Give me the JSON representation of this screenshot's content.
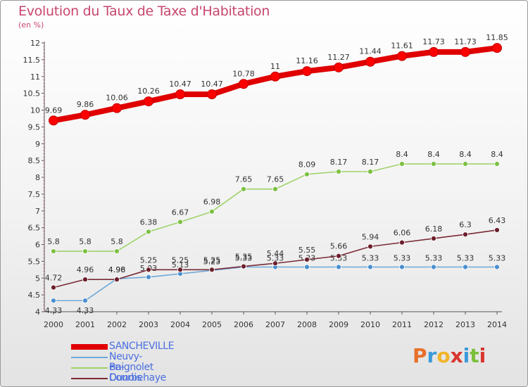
{
  "title": "Evolution du Taux de Taxe d'Habitation",
  "unit": "(en %)",
  "logo": {
    "text": "Proxiti",
    "colors": [
      "#e8702a",
      "#3a9ad9",
      "#f2b42a",
      "#d9352f",
      "#3a9ad9",
      "#7bbf3a",
      "#d9352f"
    ]
  },
  "chart_data": {
    "type": "line",
    "x": [
      2000,
      2001,
      2002,
      2003,
      2004,
      2005,
      2006,
      2007,
      2008,
      2009,
      2010,
      2011,
      2012,
      2013,
      2014
    ],
    "ylim": [
      4,
      12
    ],
    "yticks": [
      4,
      4.5,
      5,
      5.5,
      6,
      6.5,
      7,
      7.5,
      8,
      8.5,
      9,
      9.5,
      10,
      10.5,
      11,
      11.5,
      12
    ],
    "ytick_labels": [
      "4",
      "4.5",
      "5",
      "5.5",
      "6",
      "6.5",
      "7",
      "7.5",
      "8",
      "8.5",
      "9",
      "9.5",
      "10",
      "10.5",
      "11",
      "11.5",
      "12"
    ],
    "grid": false,
    "legend": "bottom-left",
    "series": [
      {
        "name": "SANCHEVILLE",
        "color": "#e00000",
        "marker": "#ff0000",
        "values": [
          9.69,
          9.86,
          10.06,
          10.26,
          10.47,
          10.47,
          10.78,
          11,
          11.16,
          11.27,
          11.44,
          11.61,
          11.73,
          11.73,
          11.85
        ],
        "labels": [
          "9.69",
          "9.86",
          "10.06",
          "10.26",
          "10.47",
          "10.47",
          "10.78",
          "11",
          "11.16",
          "11.27",
          "11.44",
          "11.61",
          "11.73",
          "11.73",
          "11.85"
        ]
      },
      {
        "name": "Neuvy-en-Dunois",
        "color": "#6fa9d8",
        "marker": "#4a8fcf",
        "values": [
          4.33,
          4.33,
          4.98,
          5.03,
          5.13,
          5.23,
          5.33,
          5.33,
          5.33,
          5.33,
          5.33,
          5.33,
          5.33,
          5.33,
          5.33
        ],
        "labels": [
          "4.33",
          "4.33",
          "4.98",
          "5.03",
          "5.13",
          "5.23",
          "5.33",
          "5.33",
          "5.33",
          "5.33",
          "5.33",
          "5.33",
          "5.33",
          "5.33",
          "5.33"
        ]
      },
      {
        "name": "Baignolet",
        "color": "#9fd36a",
        "marker": "#7cc043",
        "values": [
          5.8,
          5.8,
          5.8,
          6.38,
          6.67,
          6.98,
          7.65,
          7.65,
          8.09,
          8.17,
          8.17,
          8.4,
          8.4,
          8.4,
          8.4
        ],
        "labels": [
          "5.8",
          "5.8",
          "5.8",
          "6.38",
          "6.67",
          "6.98",
          "7.65",
          "7.65",
          "8.09",
          "8.17",
          "8.17",
          "8.4",
          "8.4",
          "8.4",
          "8.4"
        ]
      },
      {
        "name": "Courbehaye",
        "color": "#7a2a36",
        "marker": "#6b1f2b",
        "values": [
          4.72,
          4.96,
          4.96,
          5.25,
          5.25,
          5.25,
          5.35,
          5.44,
          5.55,
          5.66,
          5.94,
          6.06,
          6.18,
          6.3,
          6.43
        ],
        "labels": [
          "4.72",
          "4.96",
          "4.96",
          "5.25",
          "5.25",
          "5.25",
          "5.35",
          "5.44",
          "5.55",
          "5.66",
          "5.94",
          "6.06",
          "6.18",
          "6.3",
          "6.43"
        ]
      }
    ]
  }
}
